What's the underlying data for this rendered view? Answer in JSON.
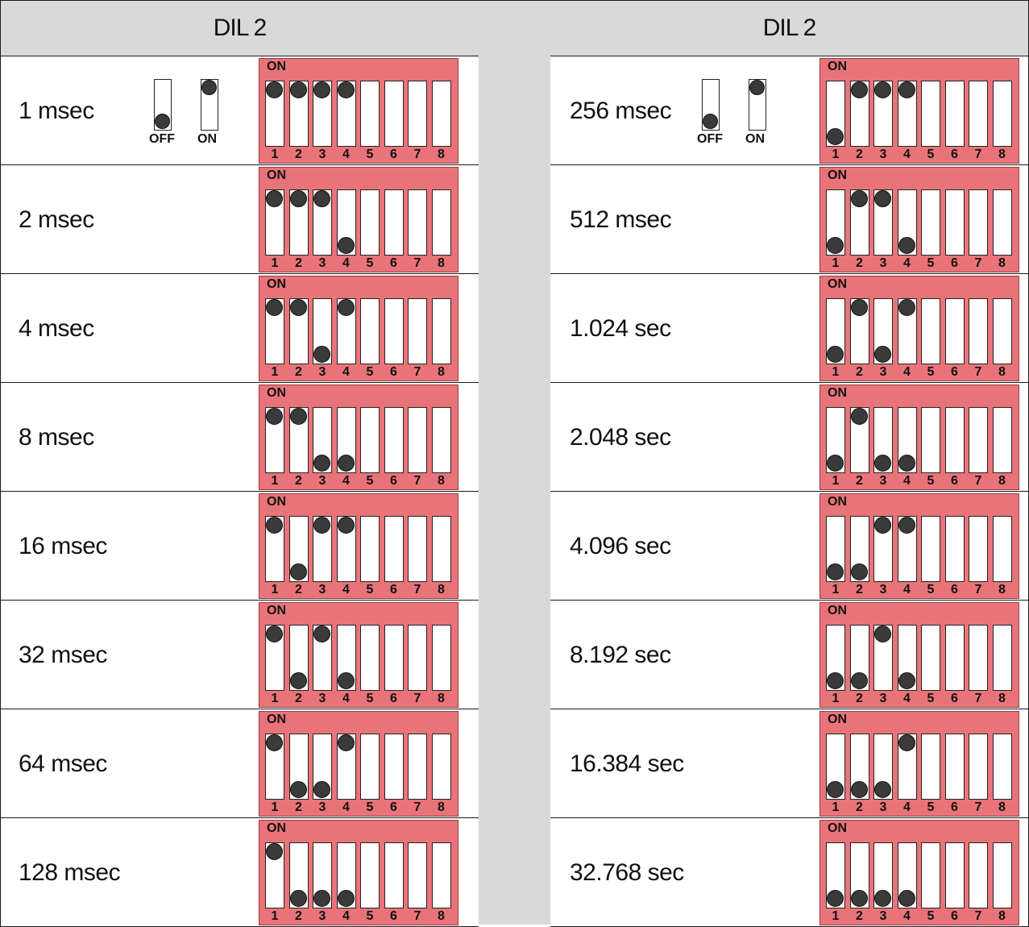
{
  "header_left": "DIL 2",
  "header_right": "DIL 2",
  "legend": {
    "off_label": "OFF",
    "on_label": "ON"
  },
  "dip_on_label": "ON",
  "switch_numbers": [
    "1",
    "2",
    "3",
    "4",
    "5",
    "6",
    "7",
    "8"
  ],
  "colors": {
    "dip_body": "#e8747a",
    "header_bg": "#d9d9d9",
    "knob": "#3a3a3a"
  },
  "left_rows": [
    {
      "label": "1 msec",
      "switches": [
        1,
        1,
        1,
        1,
        0,
        0,
        0,
        0
      ]
    },
    {
      "label": "2 msec",
      "switches": [
        1,
        1,
        1,
        0,
        0,
        0,
        0,
        0
      ]
    },
    {
      "label": "4 msec",
      "switches": [
        1,
        1,
        0,
        1,
        0,
        0,
        0,
        0
      ]
    },
    {
      "label": "8 msec",
      "switches": [
        1,
        1,
        0,
        0,
        0,
        0,
        0,
        0
      ]
    },
    {
      "label": "16 msec",
      "switches": [
        1,
        0,
        1,
        1,
        0,
        0,
        0,
        0
      ]
    },
    {
      "label": "32 msec",
      "switches": [
        1,
        0,
        1,
        0,
        0,
        0,
        0,
        0
      ]
    },
    {
      "label": "64 msec",
      "switches": [
        1,
        0,
        0,
        1,
        0,
        0,
        0,
        0
      ]
    },
    {
      "label": "128 msec",
      "switches": [
        1,
        0,
        0,
        0,
        0,
        0,
        0,
        0
      ]
    }
  ],
  "right_rows": [
    {
      "label": "256 msec",
      "switches": [
        0,
        1,
        1,
        1,
        0,
        0,
        0,
        0
      ]
    },
    {
      "label": "512 msec",
      "switches": [
        0,
        1,
        1,
        0,
        0,
        0,
        0,
        0
      ]
    },
    {
      "label": "1.024 sec",
      "switches": [
        0,
        1,
        0,
        1,
        0,
        0,
        0,
        0
      ]
    },
    {
      "label": "2.048 sec",
      "switches": [
        0,
        1,
        0,
        0,
        0,
        0,
        0,
        0
      ]
    },
    {
      "label": "4.096 sec",
      "switches": [
        0,
        0,
        1,
        1,
        0,
        0,
        0,
        0
      ]
    },
    {
      "label": "8.192 sec",
      "switches": [
        0,
        0,
        1,
        0,
        0,
        0,
        0,
        0
      ]
    },
    {
      "label": "16.384 sec",
      "switches": [
        0,
        0,
        0,
        1,
        0,
        0,
        0,
        0
      ]
    },
    {
      "label": "32.768 sec",
      "switches": [
        0,
        0,
        0,
        0,
        0,
        0,
        0,
        0
      ]
    }
  ]
}
